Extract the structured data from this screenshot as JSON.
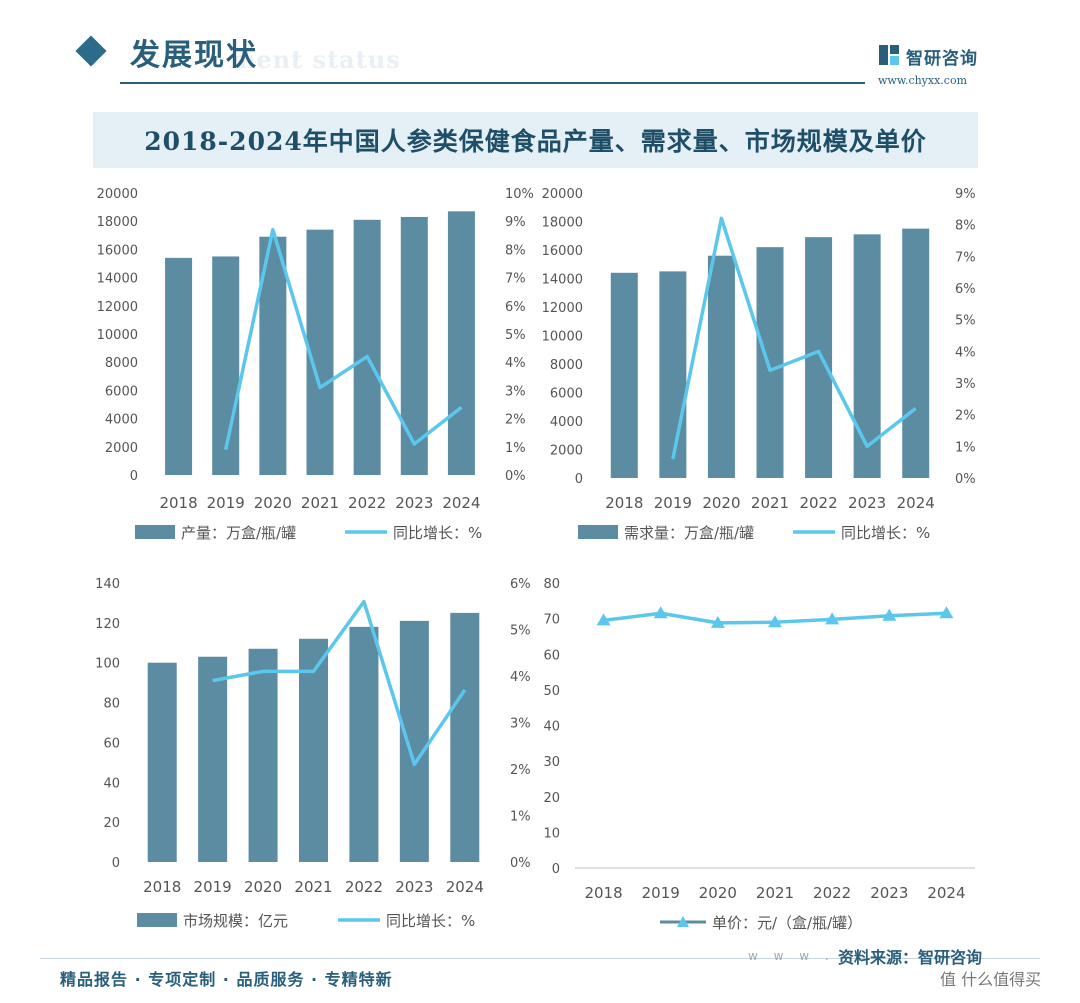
{
  "header": {
    "section_title": "发展现状",
    "section_watermark": "ment status",
    "brand_name": "智研咨询",
    "brand_site": "www.chyxx.com"
  },
  "main_title": "2018-2024年中国人参类保健食品产量、需求量、市场规模及单价",
  "colors": {
    "bar": "#5b8ca2",
    "line": "#5bc7ec",
    "axis_text": "#555555",
    "title": "#1f4f68"
  },
  "chart_data": [
    {
      "type": "bar",
      "categories": [
        "2018",
        "2019",
        "2020",
        "2021",
        "2022",
        "2023",
        "2024"
      ],
      "series": [
        {
          "name": "产量：万盒/瓶/罐",
          "type": "bar",
          "axis": "left",
          "values": [
            15400,
            15500,
            16900,
            17400,
            18100,
            18300,
            18700
          ]
        },
        {
          "name": "同比增长：%",
          "type": "line",
          "axis": "right",
          "values": [
            null,
            0.9,
            8.7,
            3.1,
            4.2,
            1.1,
            2.4
          ]
        }
      ],
      "ylim_left": [
        0,
        20000
      ],
      "yticks_left": [
        "0",
        "2000",
        "4000",
        "6000",
        "8000",
        "10000",
        "12000",
        "14000",
        "16000",
        "18000",
        "20000"
      ],
      "ylim_right": [
        0,
        10
      ],
      "yticks_right": [
        "0%",
        "1%",
        "2%",
        "3%",
        "4%",
        "5%",
        "6%",
        "7%",
        "8%",
        "9%",
        "10%"
      ],
      "legend_position": "bottom"
    },
    {
      "type": "bar",
      "categories": [
        "2018",
        "2019",
        "2020",
        "2021",
        "2022",
        "2023",
        "2024"
      ],
      "series": [
        {
          "name": "需求量：万盒/瓶/罐",
          "type": "bar",
          "axis": "left",
          "values": [
            14400,
            14500,
            15600,
            16200,
            16900,
            17100,
            17500
          ]
        },
        {
          "name": "同比增长：%",
          "type": "line",
          "axis": "right",
          "values": [
            null,
            0.6,
            8.2,
            3.4,
            4.0,
            1.0,
            2.2
          ]
        }
      ],
      "ylim_left": [
        0,
        20000
      ],
      "yticks_left": [
        "0",
        "2000",
        "4000",
        "6000",
        "8000",
        "10000",
        "12000",
        "14000",
        "16000",
        "18000",
        "20000"
      ],
      "ylim_right": [
        0,
        9
      ],
      "yticks_right": [
        "0%",
        "1%",
        "2%",
        "3%",
        "4%",
        "5%",
        "6%",
        "7%",
        "8%",
        "9%"
      ],
      "legend_position": "bottom"
    },
    {
      "type": "bar",
      "categories": [
        "2018",
        "2019",
        "2020",
        "2021",
        "2022",
        "2023",
        "2024"
      ],
      "series": [
        {
          "name": "市场规模：亿元",
          "type": "bar",
          "axis": "left",
          "values": [
            100,
            103,
            107,
            112,
            118,
            121,
            125
          ]
        },
        {
          "name": "同比增长：%",
          "type": "line",
          "axis": "right",
          "values": [
            null,
            3.9,
            4.1,
            4.1,
            5.6,
            2.1,
            3.7
          ]
        }
      ],
      "ylim_left": [
        0,
        140
      ],
      "yticks_left": [
        "0",
        "20",
        "40",
        "60",
        "80",
        "100",
        "120",
        "140"
      ],
      "ylim_right": [
        0,
        6
      ],
      "yticks_right": [
        "0%",
        "1%",
        "2%",
        "3%",
        "4%",
        "5%",
        "6%"
      ],
      "legend_position": "bottom"
    },
    {
      "type": "line",
      "categories": [
        "2018",
        "2019",
        "2020",
        "2021",
        "2022",
        "2023",
        "2024"
      ],
      "series": [
        {
          "name": "单价：元/（盒/瓶/罐）",
          "type": "line",
          "axis": "left",
          "marker": "triangle",
          "values": [
            69.5,
            71.5,
            68.8,
            69.0,
            69.8,
            70.8,
            71.5
          ]
        }
      ],
      "ylim_left": [
        0,
        80
      ],
      "yticks_left": [
        "0",
        "10",
        "20",
        "30",
        "40",
        "50",
        "60",
        "70",
        "80"
      ],
      "legend_position": "bottom"
    }
  ],
  "footer": {
    "slogan": "精品报告 · 专项定制 · 品质服务 · 专精特新",
    "www": "w w w .",
    "source": "资料来源：智研咨询",
    "platform": "值 什么值得买"
  }
}
